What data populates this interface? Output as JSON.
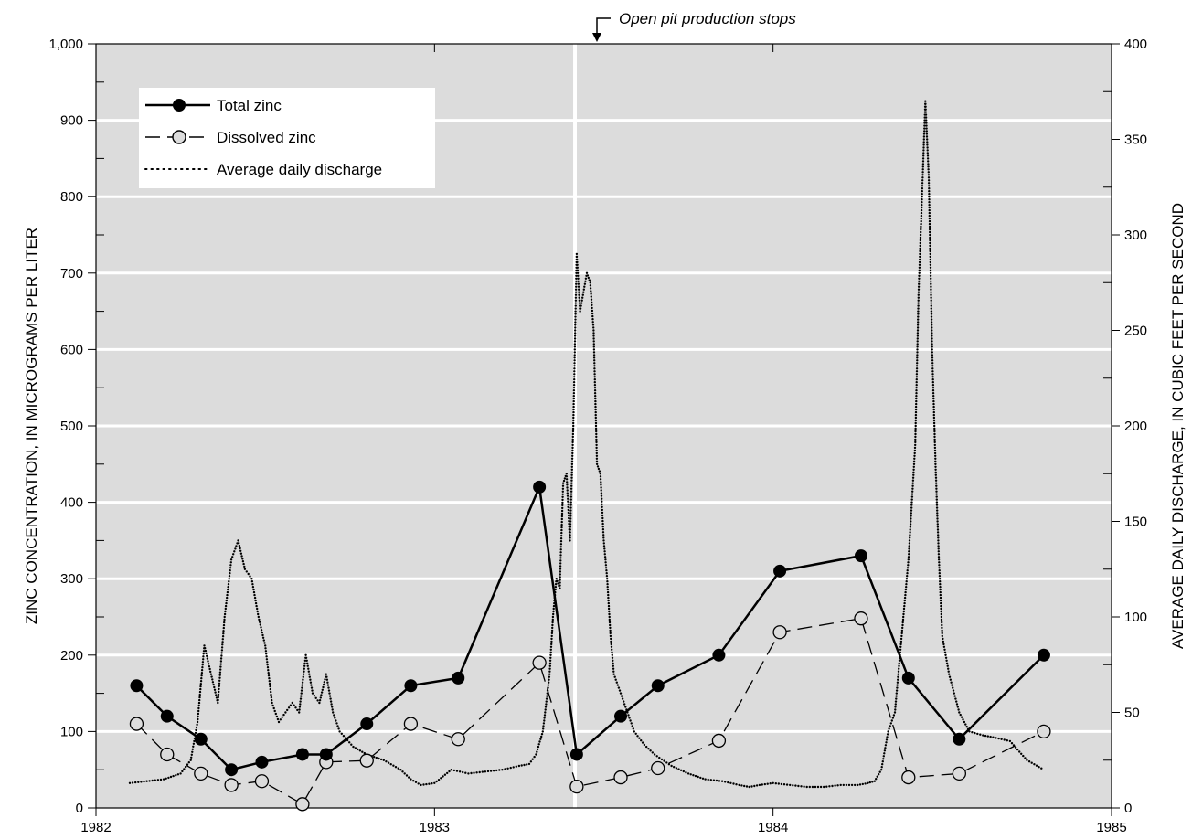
{
  "chart_data": {
    "type": "line",
    "x_axis": {
      "ticks": [
        1982,
        1983,
        1984,
        1985
      ],
      "tick_labels": [
        "1982",
        "1983",
        "1984",
        "1985"
      ],
      "range": [
        1982,
        1985
      ]
    },
    "y_left": {
      "label": "ZINC CONCENTRATION, IN MICROGRAMS PER LITER",
      "range": [
        0,
        1000
      ],
      "ticks": [
        0,
        100,
        200,
        300,
        400,
        500,
        600,
        700,
        800,
        900,
        1000
      ],
      "tick_labels": [
        "0",
        "100",
        "200",
        "300",
        "400",
        "500",
        "600",
        "700",
        "800",
        "900",
        "1,000"
      ]
    },
    "y_right": {
      "label": "AVERAGE DAILY DISCHARGE, IN CUBIC FEET PER SECOND",
      "range": [
        0,
        400
      ],
      "ticks": [
        0,
        50,
        100,
        150,
        200,
        250,
        300,
        350,
        400
      ],
      "tick_labels": [
        "0",
        "50",
        "100",
        "150",
        "200",
        "250",
        "300",
        "350",
        "400"
      ]
    },
    "grid": "horizontal",
    "legend_position": "top-left",
    "legend": [
      "Total zinc",
      "Dissolved zinc",
      "Average daily discharge"
    ],
    "annotation": {
      "text": "Open pit production stops",
      "x": 1983.415
    },
    "series": [
      {
        "name": "Total zinc",
        "axis": "left",
        "style": "solid-filled-markers",
        "x": [
          1982.12,
          1982.21,
          1982.31,
          1982.4,
          1982.49,
          1982.61,
          1982.68,
          1982.8,
          1982.93,
          1983.07,
          1983.31,
          1983.42,
          1983.55,
          1983.66,
          1983.84,
          1984.02,
          1984.26,
          1984.4,
          1984.55,
          1984.8
        ],
        "y": [
          160,
          120,
          90,
          50,
          60,
          70,
          70,
          110,
          160,
          170,
          420,
          70,
          120,
          160,
          200,
          310,
          330,
          170,
          90,
          200
        ]
      },
      {
        "name": "Dissolved zinc",
        "axis": "left",
        "style": "dashed-open-markers",
        "x": [
          1982.12,
          1982.21,
          1982.31,
          1982.4,
          1982.49,
          1982.61,
          1982.68,
          1982.8,
          1982.93,
          1983.07,
          1983.31,
          1983.42,
          1983.55,
          1983.66,
          1983.84,
          1984.02,
          1984.26,
          1984.4,
          1984.55,
          1984.8
        ],
        "y": [
          110,
          70,
          45,
          30,
          35,
          5,
          60,
          62,
          110,
          90,
          190,
          28,
          40,
          52,
          88,
          230,
          248,
          40,
          45,
          100
        ]
      },
      {
        "name": "Average daily discharge",
        "axis": "right",
        "style": "dotted",
        "x": [
          1982.1,
          1982.15,
          1982.2,
          1982.25,
          1982.28,
          1982.3,
          1982.32,
          1982.34,
          1982.36,
          1982.38,
          1982.4,
          1982.42,
          1982.44,
          1982.46,
          1982.48,
          1982.5,
          1982.52,
          1982.54,
          1982.56,
          1982.58,
          1982.6,
          1982.62,
          1982.64,
          1982.66,
          1982.68,
          1982.7,
          1982.72,
          1982.76,
          1982.8,
          1982.85,
          1982.9,
          1982.93,
          1982.96,
          1983.0,
          1983.05,
          1983.1,
          1983.15,
          1983.2,
          1983.25,
          1983.28,
          1983.3,
          1983.32,
          1983.34,
          1983.35,
          1983.36,
          1983.37,
          1983.38,
          1983.39,
          1983.4,
          1983.41,
          1983.42,
          1983.43,
          1983.44,
          1983.45,
          1983.46,
          1983.47,
          1983.48,
          1983.49,
          1983.5,
          1983.51,
          1983.52,
          1983.53,
          1983.55,
          1983.57,
          1983.59,
          1983.62,
          1983.65,
          1983.7,
          1983.75,
          1983.8,
          1983.85,
          1983.9,
          1983.93,
          1983.96,
          1984.0,
          1984.05,
          1984.1,
          1984.15,
          1984.2,
          1984.25,
          1984.28,
          1984.3,
          1984.32,
          1984.34,
          1984.36,
          1984.38,
          1984.4,
          1984.42,
          1984.43,
          1984.44,
          1984.45,
          1984.46,
          1984.47,
          1984.48,
          1984.49,
          1984.5,
          1984.52,
          1984.55,
          1984.58,
          1984.62,
          1984.65,
          1984.7,
          1984.75,
          1984.8
        ],
        "y": [
          13,
          14,
          15,
          18,
          25,
          45,
          85,
          70,
          55,
          100,
          130,
          140,
          125,
          120,
          100,
          85,
          55,
          45,
          50,
          55,
          50,
          80,
          60,
          55,
          70,
          50,
          40,
          32,
          28,
          25,
          20,
          15,
          12,
          13,
          20,
          18,
          19,
          20,
          22,
          23,
          28,
          40,
          70,
          100,
          120,
          115,
          170,
          175,
          140,
          200,
          290,
          260,
          270,
          280,
          275,
          250,
          180,
          175,
          140,
          120,
          90,
          70,
          60,
          50,
          40,
          33,
          28,
          22,
          18,
          15,
          14,
          12,
          11,
          12,
          13,
          12,
          11,
          11,
          12,
          12,
          13,
          14,
          20,
          40,
          50,
          90,
          130,
          190,
          270,
          320,
          370,
          330,
          240,
          180,
          130,
          90,
          70,
          50,
          40,
          38,
          37,
          35,
          25,
          20
        ]
      }
    ]
  }
}
